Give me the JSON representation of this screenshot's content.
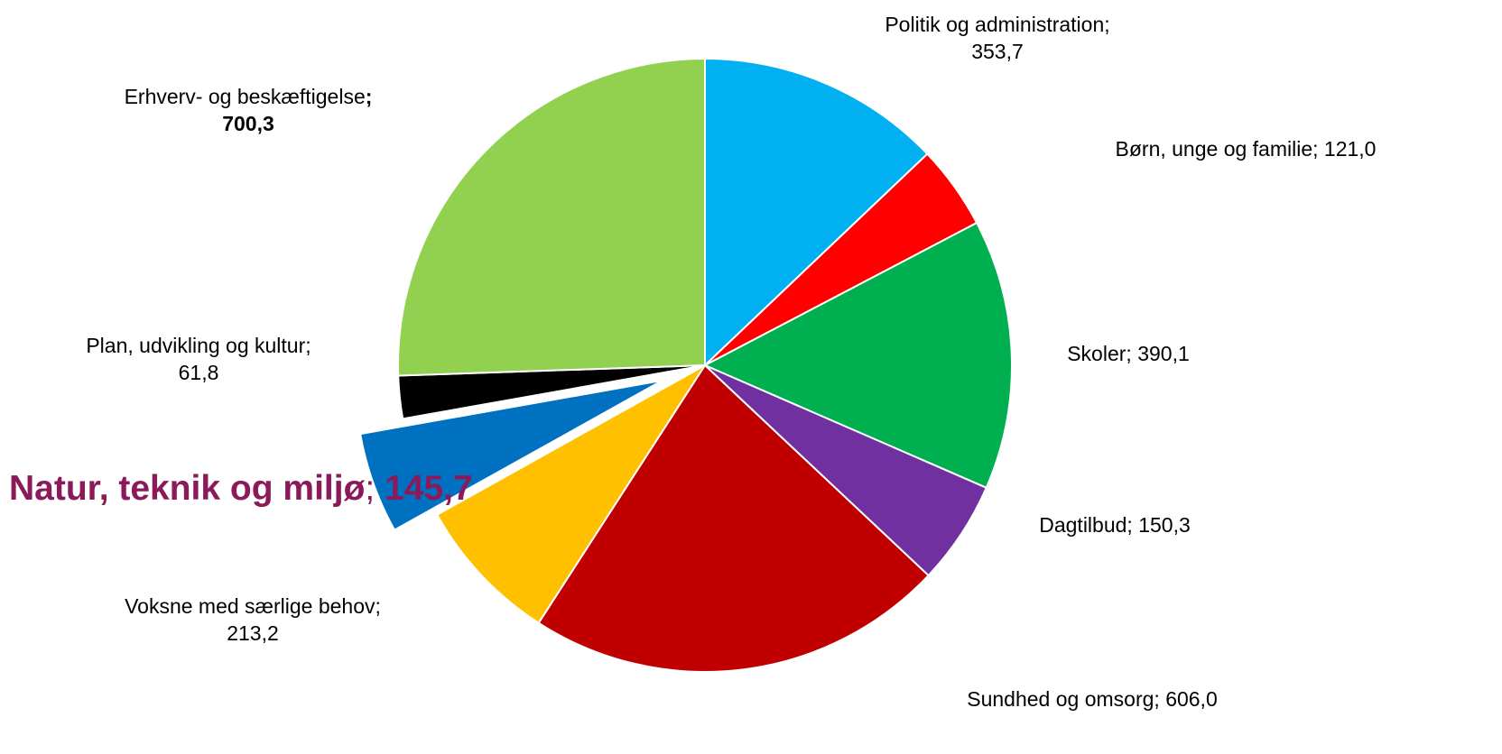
{
  "chart_data": {
    "type": "pie",
    "title": "",
    "start_angle_deg": 0,
    "direction": "clockwise",
    "slices": [
      {
        "label": "Politik og administration",
        "value_text": "353,7",
        "value": 353.7,
        "color": "#00b0f0",
        "label_style": "normal"
      },
      {
        "label": "Børn, unge og familie",
        "value_text": "121,0",
        "value": 121.0,
        "color": "#ff0000",
        "label_style": "normal"
      },
      {
        "label": "Skoler",
        "value_text": "390,1",
        "value": 390.1,
        "color": "#00b050",
        "label_style": "normal"
      },
      {
        "label": "Dagtilbud",
        "value_text": "150,3",
        "value": 150.3,
        "color": "#7030a0",
        "label_style": "normal"
      },
      {
        "label": "Sundhed og omsorg",
        "value_text": "606,0",
        "value": 606.0,
        "color": "#c00000",
        "label_style": "normal"
      },
      {
        "label": "Voksne med særlige behov",
        "value_text": "213,2",
        "value": 213.2,
        "color": "#ffc000",
        "label_style": "normal"
      },
      {
        "label": "Natur, teknik og miljø",
        "value_text": "145,7",
        "value": 145.7,
        "color": "#0070c0",
        "label_style": "highlight",
        "exploded": true
      },
      {
        "label": "Plan, udvikling og kultur",
        "value_text": "61,8",
        "value": 61.8,
        "color": "#000000",
        "label_style": "normal"
      },
      {
        "label": "Erhverv- og beskæftigelse",
        "value_text": "700,3",
        "value": 700.3,
        "color": "#92d050",
        "label_style": "bold-value"
      }
    ]
  }
}
